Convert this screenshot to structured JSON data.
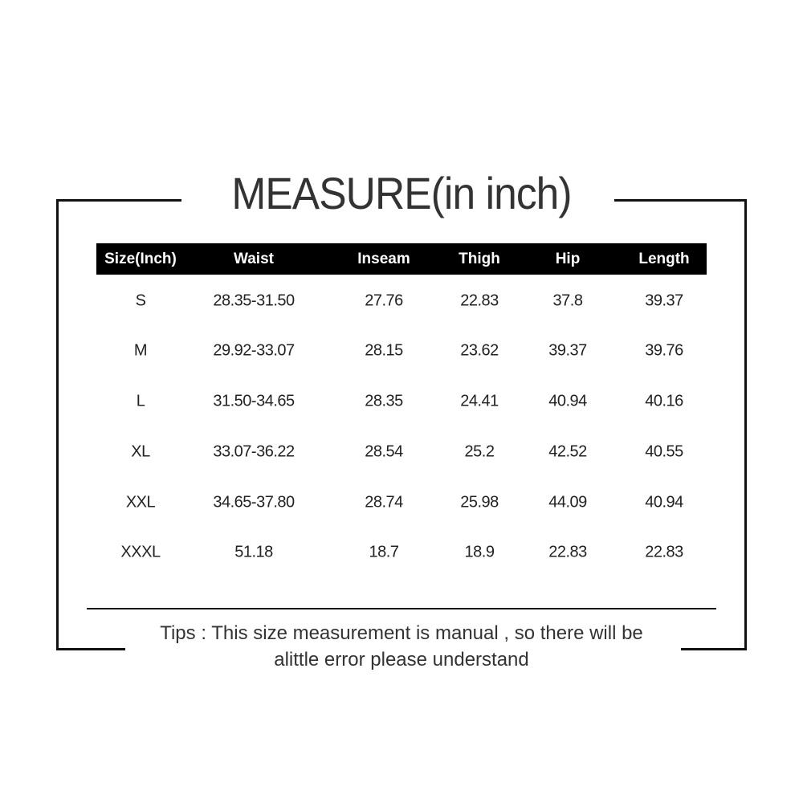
{
  "title": "MEASURE(in inch)",
  "table": {
    "headers": [
      "Size(Inch)",
      "Waist",
      "Inseam",
      "Thigh",
      "Hip",
      "Length"
    ],
    "rows": [
      [
        "S",
        "28.35-31.50",
        "27.76",
        "22.83",
        "37.8",
        "39.37"
      ],
      [
        "M",
        "29.92-33.07",
        "28.15",
        "23.62",
        "39.37",
        "39.76"
      ],
      [
        "L",
        "31.50-34.65",
        "28.35",
        "24.41",
        "40.94",
        "40.16"
      ],
      [
        "XL",
        "33.07-36.22",
        "28.54",
        "25.2",
        "42.52",
        "40.55"
      ],
      [
        "XXL",
        "34.65-37.80",
        "28.74",
        "25.98",
        "44.09",
        "40.94"
      ],
      [
        "XXXL",
        "51.18",
        "18.7",
        "18.9",
        "22.83",
        "22.83"
      ]
    ]
  },
  "tips": {
    "line1": "Tips : This size measurement is manual , so there will be",
    "line2": "alittle error please understand"
  },
  "colors": {
    "header_bg": "#000000",
    "header_text": "#ffffff",
    "text": "#333333"
  }
}
